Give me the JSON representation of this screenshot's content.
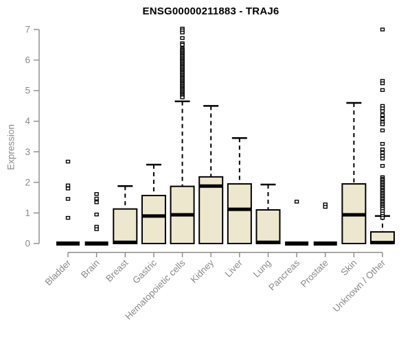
{
  "colors": {
    "box_fill": "#EDE7CD",
    "box_stroke": "#000000",
    "axis": "#8a8a8a",
    "title": "#000000",
    "background": "#ffffff"
  },
  "chart_data": {
    "type": "boxplot",
    "title": "ENSG00000211883 - TRAJ6",
    "xlabel": "",
    "ylabel": "Expression",
    "ylim": [
      0,
      7
    ],
    "yticks": [
      0,
      1,
      2,
      3,
      4,
      5,
      6,
      7
    ],
    "grid": false,
    "legend": null,
    "categories": [
      "Bladder",
      "Brain",
      "Breast",
      "Gastric",
      "Hematopoietic cells",
      "Kidney",
      "Liver",
      "Lung",
      "Pancreas",
      "Prostate",
      "Skin",
      "Unknown / Other"
    ],
    "boxes": [
      {
        "category": "Bladder",
        "whisker_low": 0,
        "q1": 0,
        "median": 0,
        "q3": 0,
        "whisker_high": 0,
        "outliers": [
          2.68,
          1.9,
          1.8,
          1.46,
          0.84
        ]
      },
      {
        "category": "Brain",
        "whisker_low": 0,
        "q1": 0,
        "median": 0,
        "q3": 0,
        "whisker_high": 0,
        "outliers": [
          1.62,
          1.47,
          1.35,
          0.95,
          0.55,
          0.47
        ]
      },
      {
        "category": "Breast",
        "whisker_low": 0,
        "q1": 0,
        "median": 0.04,
        "q3": 1.13,
        "whisker_high": 1.88,
        "outliers": []
      },
      {
        "category": "Gastric",
        "whisker_low": 0,
        "q1": 0,
        "median": 0.9,
        "q3": 1.57,
        "whisker_high": 2.58,
        "outliers": []
      },
      {
        "category": "Hematopoietic cells",
        "whisker_low": 0,
        "q1": 0,
        "median": 0.94,
        "q3": 1.87,
        "whisker_high": 4.65,
        "outliers": [
          7.03,
          6.97,
          6.9,
          6.72,
          6.55,
          6.5,
          6.38,
          6.34,
          6.3,
          6.26,
          6.22,
          6.18,
          6.14,
          6.1,
          6.06,
          6.02,
          5.98,
          5.94,
          5.9,
          5.86,
          5.82,
          5.78,
          5.74,
          5.7,
          5.66,
          5.62,
          5.58,
          5.54,
          5.5,
          5.46,
          5.42,
          5.38,
          5.34,
          5.3,
          5.26,
          5.22,
          5.18,
          5.14,
          5.1,
          5.06,
          5.02,
          4.98,
          4.94,
          4.9,
          4.86,
          4.82,
          4.78
        ]
      },
      {
        "category": "Kidney",
        "whisker_low": 0,
        "q1": 0,
        "median": 1.88,
        "q3": 2.18,
        "whisker_high": 4.5,
        "outliers": []
      },
      {
        "category": "Liver",
        "whisker_low": 0,
        "q1": 0,
        "median": 1.12,
        "q3": 1.95,
        "whisker_high": 3.45,
        "outliers": []
      },
      {
        "category": "Lung",
        "whisker_low": 0,
        "q1": 0,
        "median": 0.04,
        "q3": 1.1,
        "whisker_high": 1.93,
        "outliers": []
      },
      {
        "category": "Pancreas",
        "whisker_low": 0,
        "q1": 0,
        "median": 0,
        "q3": 0,
        "whisker_high": 0,
        "outliers": [
          1.37
        ]
      },
      {
        "category": "Prostate",
        "whisker_low": 0,
        "q1": 0,
        "median": 0,
        "q3": 0,
        "whisker_high": 0,
        "outliers": [
          1.28,
          1.2
        ]
      },
      {
        "category": "Skin",
        "whisker_low": 0,
        "q1": 0,
        "median": 0.94,
        "q3": 1.95,
        "whisker_high": 4.6,
        "outliers": []
      },
      {
        "category": "Unknown / Other",
        "whisker_low": 0,
        "q1": 0,
        "median": 0.03,
        "q3": 0.38,
        "whisker_high": 0.9,
        "outliers": [
          7.0,
          5.32,
          5.24,
          5.02,
          4.5,
          4.42,
          4.33,
          4.2,
          4.08,
          3.97,
          3.9,
          3.7,
          3.26,
          3.08,
          2.97,
          2.87,
          2.78,
          2.54,
          2.17,
          2.12,
          2.08,
          2.03,
          1.99,
          1.94,
          1.9,
          1.85,
          1.81,
          1.76,
          1.72,
          1.67,
          1.63,
          1.58,
          1.54,
          1.49,
          1.45,
          1.4,
          1.36,
          1.31,
          1.27,
          1.22,
          1.18,
          1.13,
          1.06,
          0.98,
          0.9,
          0.84
        ]
      }
    ]
  }
}
